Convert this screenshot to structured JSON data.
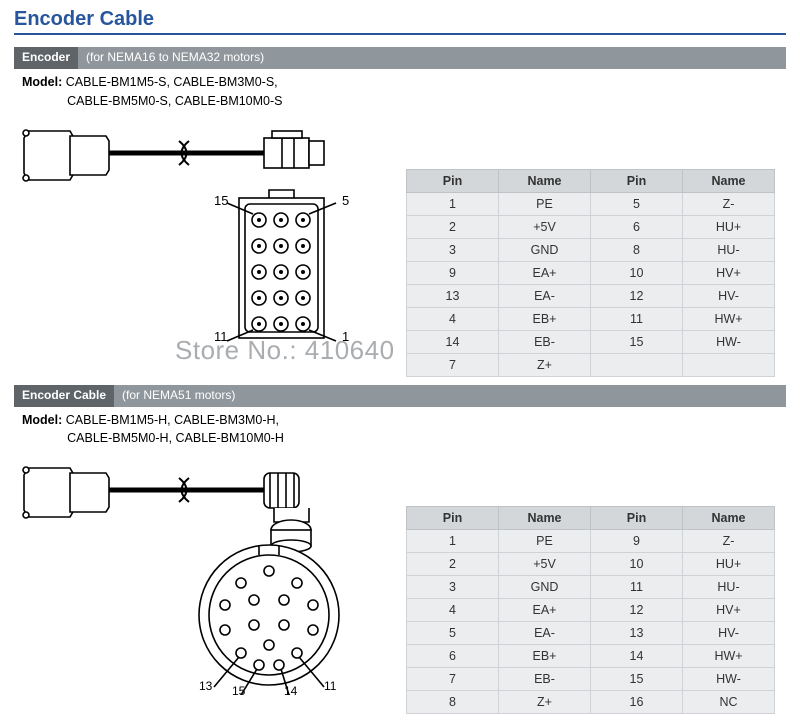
{
  "page": {
    "title": "Encoder Cable"
  },
  "colors": {
    "title": "#28569c",
    "barDark": "#5e6468",
    "barLight": "#8f979c",
    "tableHeader": "#d3d7da",
    "tableCell": "#ecedef",
    "stroke": "#000000"
  },
  "watermark": "Store No.: 410640",
  "section1": {
    "barMain": "Encoder",
    "barSub": "(for NEMA16 to NEMA32 motors)",
    "modelPrefix": "Model:",
    "models1": "CABLE-BM1M5-S, CABLE-BM3M0-S,",
    "models2": "CABLE-BM5M0-S, CABLE-BM10M0-S",
    "diagramLabels": {
      "tl": "15",
      "tr": "5",
      "bl": "11",
      "br": "1"
    },
    "headers": [
      "Pin",
      "Name",
      "Pin",
      "Name"
    ],
    "rows": [
      [
        "1",
        "PE",
        "5",
        "Z-"
      ],
      [
        "2",
        "+5V",
        "6",
        "HU+"
      ],
      [
        "3",
        "GND",
        "8",
        "HU-"
      ],
      [
        "9",
        "EA+",
        "10",
        "HV+"
      ],
      [
        "13",
        "EA-",
        "12",
        "HV-"
      ],
      [
        "4",
        "EB+",
        "11",
        "HW+"
      ],
      [
        "14",
        "EB-",
        "15",
        "HW-"
      ],
      [
        "7",
        "Z+",
        "",
        ""
      ]
    ]
  },
  "section2": {
    "barMain": "Encoder Cable",
    "barSub": "(for NEMA51 motors)",
    "modelPrefix": "Model:",
    "models1": "CABLE-BM1M5-H, CABLE-BM3M0-H,",
    "models2": "CABLE-BM5M0-H, CABLE-BM10M0-H",
    "diagramLabels": {
      "l15": "15",
      "l13": "13",
      "l14": "14",
      "l11": "11"
    },
    "headers": [
      "Pin",
      "Name",
      "Pin",
      "Name"
    ],
    "rows": [
      [
        "1",
        "PE",
        "9",
        "Z-"
      ],
      [
        "2",
        "+5V",
        "10",
        "HU+"
      ],
      [
        "3",
        "GND",
        "11",
        "HU-"
      ],
      [
        "4",
        "EA+",
        "12",
        "HV+"
      ],
      [
        "5",
        "EA-",
        "13",
        "HV-"
      ],
      [
        "6",
        "EB+",
        "14",
        "HW+"
      ],
      [
        "7",
        "EB-",
        "15",
        "HW-"
      ],
      [
        "8",
        "Z+",
        "16",
        "NC"
      ]
    ]
  }
}
